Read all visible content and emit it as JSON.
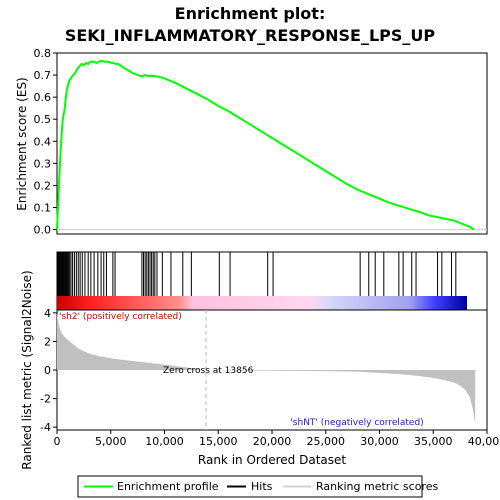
{
  "chart_data": [
    {
      "type": "line",
      "title_line1": "Enrichment plot:",
      "title_line2": "SEKI_INFLAMMATORY_RESPONSE_LPS_UP",
      "ylabel": "Enrichment score (ES)",
      "xlim": [
        0,
        40000
      ],
      "ylim": [
        -0.02,
        0.8
      ],
      "yticks": [
        "0.0",
        "0.1",
        "0.2",
        "0.3",
        "0.4",
        "0.5",
        "0.6",
        "0.7",
        "0.8"
      ],
      "series": [
        {
          "name": "Enrichment profile",
          "color": "#00ff00",
          "x": [
            0,
            60,
            130,
            200,
            280,
            350,
            430,
            520,
            600,
            700,
            800,
            900,
            1050,
            1200,
            1350,
            1500,
            1700,
            1900,
            2100,
            2300,
            2500,
            2700,
            2900,
            3100,
            3300,
            3500,
            3700,
            3900,
            4100,
            4300,
            4500,
            4800,
            5100,
            5400,
            5700,
            6000,
            6500,
            7000,
            7500,
            7900,
            8200,
            8500,
            8800,
            9100,
            9500,
            10000,
            11000,
            12000,
            13000,
            14000,
            15000,
            16000,
            17000,
            18000,
            19000,
            20000,
            21000,
            22000,
            23000,
            24000,
            25000,
            26000,
            27000,
            28000,
            29000,
            30000,
            31000,
            32000,
            33000,
            34000,
            34500,
            35000,
            35500,
            36000,
            36500,
            37000,
            37500,
            38000,
            38500,
            38800
          ],
          "y": [
            0.0,
            0.06,
            0.14,
            0.22,
            0.3,
            0.37,
            0.43,
            0.49,
            0.52,
            0.54,
            0.59,
            0.63,
            0.66,
            0.68,
            0.69,
            0.7,
            0.71,
            0.73,
            0.74,
            0.75,
            0.745,
            0.755,
            0.75,
            0.76,
            0.762,
            0.758,
            0.755,
            0.76,
            0.765,
            0.762,
            0.76,
            0.76,
            0.755,
            0.752,
            0.75,
            0.74,
            0.725,
            0.71,
            0.7,
            0.695,
            0.7,
            0.695,
            0.698,
            0.695,
            0.692,
            0.685,
            0.665,
            0.64,
            0.615,
            0.59,
            0.56,
            0.535,
            0.505,
            0.475,
            0.445,
            0.415,
            0.385,
            0.355,
            0.325,
            0.295,
            0.265,
            0.235,
            0.205,
            0.18,
            0.16,
            0.14,
            0.12,
            0.105,
            0.09,
            0.075,
            0.065,
            0.06,
            0.055,
            0.05,
            0.045,
            0.04,
            0.03,
            0.02,
            0.01,
            0.0
          ]
        }
      ]
    },
    {
      "type": "hits",
      "hit_positions": [
        40,
        90,
        150,
        210,
        260,
        330,
        400,
        470,
        540,
        610,
        680,
        760,
        840,
        920,
        1000,
        1080,
        1180,
        1300,
        1450,
        1620,
        1800,
        1980,
        2150,
        2350,
        2600,
        2900,
        3150,
        3450,
        3800,
        4100,
        4350,
        4600,
        5200,
        5400,
        7900,
        8050,
        8200,
        8350,
        8500,
        8650,
        8800,
        8950,
        9100,
        9300,
        9800,
        10600,
        11700,
        12500,
        15100,
        16100,
        19600,
        20100,
        28200,
        29000,
        29600,
        30400,
        31800,
        32200,
        33000,
        33400,
        35400,
        35800,
        36700,
        37100
      ]
    },
    {
      "type": "area",
      "ylabel": "Ranked list metric (Signal2Noise)",
      "xlabel": "Rank in Ordered Dataset",
      "xlim": [
        0,
        40000
      ],
      "ylim": [
        -4.2,
        4.2
      ],
      "yticks": [
        "4",
        "2",
        "0",
        "-2",
        "-4"
      ],
      "xticks": [
        "0",
        "5,000",
        "10,000",
        "15,000",
        "20,000",
        "25,000",
        "30,000",
        "35,000",
        "40,000"
      ],
      "zero_cross_label": "Zero cross at 13856",
      "zero_cross": 13856,
      "pos_label": "'sh2' (positively correlated)",
      "neg_label": "'shNT' (negatively correlated)",
      "fill_color": "#c0c0c0",
      "x": [
        0,
        100,
        300,
        600,
        1000,
        1500,
        2000,
        3000,
        4000,
        5000,
        6000,
        8000,
        10000,
        12000,
        13856,
        15000,
        20000,
        25000,
        28000,
        30000,
        32000,
        34000,
        35000,
        36000,
        37000,
        37500,
        38000,
        38400,
        38700,
        38900
      ],
      "y": [
        4.0,
        3.4,
        2.8,
        2.4,
        2.1,
        1.8,
        1.5,
        1.15,
        0.95,
        0.82,
        0.72,
        0.55,
        0.38,
        0.18,
        0.0,
        -0.02,
        -0.05,
        -0.08,
        -0.12,
        -0.2,
        -0.3,
        -0.45,
        -0.55,
        -0.7,
        -0.9,
        -1.1,
        -1.4,
        -1.9,
        -2.8,
        -3.8
      ]
    }
  ],
  "legend": {
    "items": [
      {
        "label": "Enrichment profile",
        "color": "#00ff00"
      },
      {
        "label": "Hits",
        "color": "#000000"
      },
      {
        "label": "Ranking metric scores",
        "color": "#d3d3d3"
      }
    ]
  }
}
